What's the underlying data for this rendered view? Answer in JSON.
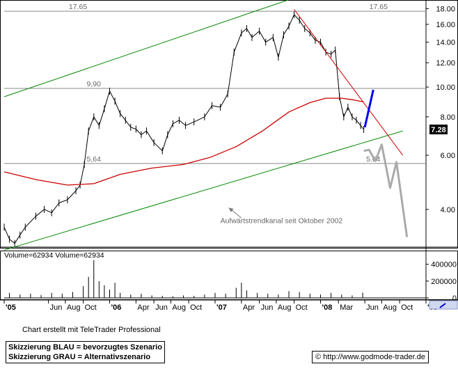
{
  "chart_data": [
    {
      "type": "line",
      "title": "",
      "scale": "log",
      "ylim": [
        3.0,
        19.0
      ],
      "ytick_labels": [
        "18.00",
        "16.00",
        "14.00",
        "12.00",
        "10.00",
        "8.00",
        "6.00",
        "4.00"
      ],
      "ytick_values": [
        18,
        16,
        14,
        12,
        10,
        8,
        6,
        4
      ],
      "x_range": [
        "2005-01",
        "2009-01"
      ],
      "xtick_labels": [
        "'05",
        "Jun",
        "Aug",
        "Oct",
        "'06",
        "Apr",
        "Jun",
        "Aug",
        "Oct",
        "'07",
        "Apr",
        "Jun",
        "Aug",
        "Oct",
        "'08",
        "Mar",
        "Jun",
        "Aug",
        "Oct",
        "'09"
      ],
      "xtick_values": [
        2005.0,
        2005.42,
        2005.58,
        2005.75,
        2006.0,
        2006.25,
        2006.42,
        2006.58,
        2006.75,
        2007.0,
        2007.25,
        2007.42,
        2007.58,
        2007.75,
        2008.0,
        2008.17,
        2008.42,
        2008.58,
        2008.75,
        2009.0
      ],
      "series": [
        {
          "kind": "price",
          "color": "#000000",
          "x": [
            2005.0,
            2005.05,
            2005.1,
            2005.15,
            2005.2,
            2005.3,
            2005.38,
            2005.45,
            2005.52,
            2005.6,
            2005.68,
            2005.72,
            2005.76,
            2005.8,
            2005.85,
            2005.9,
            2005.95,
            2006.0,
            2006.05,
            2006.1,
            2006.15,
            2006.2,
            2006.25,
            2006.3,
            2006.35,
            2006.42,
            2006.5,
            2006.55,
            2006.6,
            2006.66,
            2006.72,
            2006.8,
            2006.9,
            2006.97,
            2007.05,
            2007.12,
            2007.18,
            2007.25,
            2007.3,
            2007.35,
            2007.42,
            2007.48,
            2007.55,
            2007.6,
            2007.65,
            2007.7,
            2007.75,
            2007.8,
            2007.85,
            2007.9,
            2007.95,
            2008.0,
            2008.05,
            2008.1,
            2008.14,
            2008.18,
            2008.22,
            2008.26,
            2008.3,
            2008.34,
            2008.38,
            2008.41
          ],
          "values": [
            3.5,
            3.2,
            3.1,
            3.3,
            3.5,
            3.8,
            4.0,
            3.9,
            4.2,
            4.3,
            4.6,
            4.8,
            5.6,
            7.2,
            8.0,
            7.5,
            8.5,
            9.7,
            9.0,
            8.2,
            7.8,
            7.4,
            7.3,
            7.0,
            7.2,
            6.6,
            6.2,
            7.0,
            7.6,
            7.8,
            7.5,
            7.7,
            8.0,
            8.7,
            8.6,
            9.5,
            13.0,
            15.0,
            15.5,
            14.5,
            15.2,
            14.0,
            14.5,
            12.5,
            14.8,
            15.8,
            17.2,
            16.5,
            15.5,
            15.0,
            14.2,
            14.0,
            13.0,
            12.8,
            13.2,
            9.3,
            8.0,
            8.6,
            8.0,
            7.8,
            7.5,
            7.28
          ]
        },
        {
          "kind": "moving-average",
          "color": "#cc0000",
          "x": [
            2005.0,
            2005.3,
            2005.6,
            2005.85,
            2006.1,
            2006.4,
            2006.7,
            2006.95,
            2007.2,
            2007.45,
            2007.7,
            2007.9,
            2008.05,
            2008.2,
            2008.3,
            2008.41
          ],
          "values": [
            5.3,
            5.0,
            4.8,
            4.85,
            5.2,
            5.45,
            5.6,
            5.9,
            6.4,
            7.2,
            8.3,
            8.9,
            9.2,
            9.2,
            9.1,
            8.95
          ]
        },
        {
          "kind": "trend-channel-upper",
          "color": "#008800",
          "x": [
            2005.0,
            2007.75
          ],
          "values": [
            9.3,
            19.5
          ]
        },
        {
          "kind": "trend-channel-lower",
          "color": "#008800",
          "x": [
            2005.0,
            2008.78
          ],
          "values": [
            2.95,
            7.2
          ]
        },
        {
          "kind": "resistance-line",
          "color": "#cc0000",
          "x": [
            2007.75,
            2008.78
          ],
          "values": [
            17.9,
            6.0
          ]
        },
        {
          "kind": "scenario-blue",
          "color": "#0000ee",
          "x": [
            2008.42,
            2008.5
          ],
          "values": [
            7.4,
            9.8
          ]
        },
        {
          "kind": "scenario-grey",
          "color": "#aaaaaa",
          "x": [
            2008.41,
            2008.46,
            2008.52,
            2008.58,
            2008.66,
            2008.72,
            2008.82
          ],
          "values": [
            6.2,
            6.25,
            5.75,
            6.5,
            4.7,
            5.7,
            3.25
          ]
        }
      ],
      "hlines": [
        {
          "value": 17.65,
          "color": "#888888"
        },
        {
          "value": 9.9,
          "color": "#888888"
        },
        {
          "value": 5.64,
          "color": "#888888"
        }
      ],
      "annotations": [
        {
          "text": "17.65",
          "x": 2005.7,
          "value": 17.65
        },
        {
          "text": "17.65",
          "x": 2008.55,
          "value": 17.65
        },
        {
          "text": "9,90",
          "x": 2005.85,
          "value": 9.9
        },
        {
          "text": "5,64",
          "x": 2005.85,
          "value": 5.64
        },
        {
          "text": "5.64",
          "x": 2008.5,
          "value": 5.64
        },
        {
          "text": "Aufwärtstrendkanal seit Oktober 2002",
          "x": 2007.05,
          "value": 3.55
        }
      ],
      "arrow": {
        "from": [
          2007.25,
          3.75
        ],
        "to": [
          2007.13,
          4.05
        ],
        "color": "#777777"
      },
      "last_price_label": "7.28",
      "last_price": 7.28
    },
    {
      "type": "bar",
      "title": "",
      "legend_text": "Volume=62934 Volume=62934",
      "ytick_labels": [
        "400000",
        "200000",
        "0"
      ],
      "ytick_values": [
        400000,
        200000,
        0
      ],
      "ylim": [
        0,
        480000
      ],
      "x": [
        2005.05,
        2005.15,
        2005.25,
        2005.35,
        2005.45,
        2005.55,
        2005.65,
        2005.75,
        2005.8,
        2005.85,
        2005.9,
        2005.95,
        2006.0,
        2006.05,
        2006.1,
        2006.2,
        2006.3,
        2006.4,
        2006.5,
        2006.6,
        2006.7,
        2006.8,
        2006.9,
        2007.0,
        2007.1,
        2007.2,
        2007.25,
        2007.3,
        2007.4,
        2007.5,
        2007.6,
        2007.7,
        2007.8,
        2007.9,
        2008.0,
        2008.1,
        2008.2,
        2008.3,
        2008.4
      ],
      "values": [
        60000,
        40000,
        50000,
        35000,
        60000,
        50000,
        70000,
        140000,
        250000,
        450000,
        200000,
        150000,
        100000,
        180000,
        60000,
        40000,
        50000,
        30000,
        25000,
        20000,
        30000,
        25000,
        40000,
        60000,
        50000,
        120000,
        180000,
        90000,
        60000,
        50000,
        40000,
        80000,
        70000,
        50000,
        40000,
        60000,
        40000,
        30000,
        62934
      ]
    }
  ],
  "credit": "Chart erstellt mit TeleTrader Professional",
  "legend_lines": [
    "Skizzierung BLAU = bevorzugtes Szenario",
    "Skizzierung GRAU = Alternativszenario"
  ],
  "url_text": "© http://www.godmode-trader.de"
}
